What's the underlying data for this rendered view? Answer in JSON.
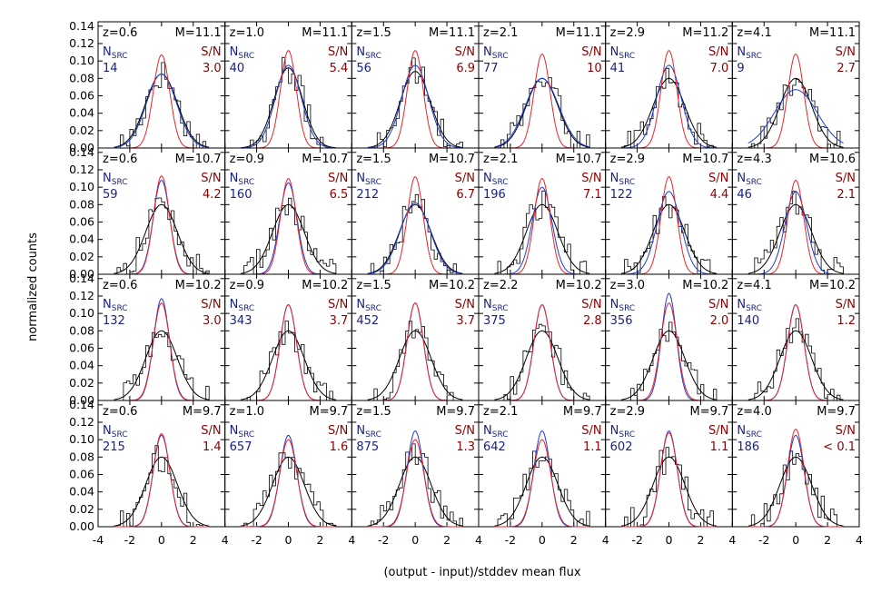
{
  "figure": {
    "xlabel": "(output - input)/stddev mean flux",
    "ylabel": "normalized counts"
  },
  "colors": {
    "histogram": "#000000",
    "fit_black": "#000000",
    "fit_blue": "#1f3bd6",
    "fit_red": "#e8232b",
    "nsrc_text": "#1a237e",
    "sn_text": "#8b0000",
    "label_text": "#000000"
  },
  "chart_data": {
    "type": "line",
    "layout": "4 rows x 6 columns panel grid, shared axes",
    "xlim": [
      -4,
      4
    ],
    "ylim": [
      0,
      0.145
    ],
    "x_ticks": [
      "-4",
      "-2",
      "0",
      "2",
      "4"
    ],
    "y_ticks": [
      "0.00",
      "0.02",
      "0.04",
      "0.06",
      "0.08",
      "0.10",
      "0.12",
      "0.14"
    ],
    "nsrc_label": "N",
    "nsrc_sub": "SRC",
    "sn_label": "S/N",
    "series_description": [
      "histogram (black step)",
      "Gaussian fit (black)",
      "Gaussian (blue)",
      "Gaussian (red)"
    ],
    "panels": [
      {
        "row": 0,
        "col": 0,
        "z": "z=0.6",
        "m": "M=11.1",
        "nsrc": "14",
        "sn": "3.0",
        "peak_black": 0.085,
        "sigma_black": 1.0,
        "peak_blue": 0.085,
        "sigma_blue": 0.95,
        "peak_red": 0.107,
        "sigma_red": 0.52
      },
      {
        "row": 0,
        "col": 1,
        "z": "z=1.0",
        "m": "M=11.1",
        "nsrc": "40",
        "sn": "5.4",
        "peak_black": 0.092,
        "sigma_black": 0.9,
        "peak_blue": 0.095,
        "sigma_blue": 0.82,
        "peak_red": 0.112,
        "sigma_red": 0.5
      },
      {
        "row": 0,
        "col": 2,
        "z": "z=1.5",
        "m": "M=11.1",
        "nsrc": "56",
        "sn": "6.9",
        "peak_black": 0.088,
        "sigma_black": 0.95,
        "peak_blue": 0.095,
        "sigma_blue": 0.85,
        "peak_red": 0.112,
        "sigma_red": 0.5
      },
      {
        "row": 0,
        "col": 3,
        "z": "z=2.1",
        "m": "M=11.1",
        "nsrc": "77",
        "sn": "10",
        "peak_black": 0.08,
        "sigma_black": 1.0,
        "peak_blue": 0.08,
        "sigma_blue": 1.05,
        "peak_red": 0.108,
        "sigma_red": 0.5
      },
      {
        "row": 0,
        "col": 4,
        "z": "z=2.9",
        "m": "M=11.2",
        "nsrc": "41",
        "sn": "7.0",
        "peak_black": 0.08,
        "sigma_black": 1.0,
        "peak_blue": 0.095,
        "sigma_blue": 0.78,
        "peak_red": 0.112,
        "sigma_red": 0.5
      },
      {
        "row": 0,
        "col": 5,
        "z": "z=4.1",
        "m": "M=11.1",
        "nsrc": "9",
        "sn": "2.7",
        "peak_black": 0.08,
        "sigma_black": 1.0,
        "peak_blue": 0.067,
        "sigma_blue": 1.35,
        "peak_red": 0.108,
        "sigma_red": 0.5
      },
      {
        "row": 1,
        "col": 0,
        "z": "z=0.6",
        "m": "M=10.7",
        "nsrc": "59",
        "sn": "4.2",
        "peak_black": 0.08,
        "sigma_black": 1.0,
        "peak_blue": 0.108,
        "sigma_blue": 0.52,
        "peak_red": 0.113,
        "sigma_red": 0.5
      },
      {
        "row": 1,
        "col": 1,
        "z": "z=0.9",
        "m": "M=10.7",
        "nsrc": "160",
        "sn": "6.5",
        "peak_black": 0.08,
        "sigma_black": 1.0,
        "peak_blue": 0.105,
        "sigma_blue": 0.55,
        "peak_red": 0.11,
        "sigma_red": 0.5
      },
      {
        "row": 1,
        "col": 2,
        "z": "z=1.5",
        "m": "M=10.7",
        "nsrc": "212",
        "sn": "6.7",
        "peak_black": 0.08,
        "sigma_black": 1.0,
        "peak_blue": 0.082,
        "sigma_blue": 0.95,
        "peak_red": 0.112,
        "sigma_red": 0.5
      },
      {
        "row": 1,
        "col": 3,
        "z": "z=2.1",
        "m": "M=10.7",
        "nsrc": "196",
        "sn": "7.1",
        "peak_black": 0.08,
        "sigma_black": 1.0,
        "peak_blue": 0.1,
        "sigma_blue": 0.62,
        "peak_red": 0.11,
        "sigma_red": 0.5
      },
      {
        "row": 1,
        "col": 4,
        "z": "z=2.9",
        "m": "M=10.7",
        "nsrc": "122",
        "sn": "4.4",
        "peak_black": 0.08,
        "sigma_black": 1.0,
        "peak_blue": 0.095,
        "sigma_blue": 0.75,
        "peak_red": 0.112,
        "sigma_red": 0.5
      },
      {
        "row": 1,
        "col": 5,
        "z": "z=4.3",
        "m": "M=10.6",
        "nsrc": "46",
        "sn": "2.1",
        "peak_black": 0.08,
        "sigma_black": 1.0,
        "peak_blue": 0.095,
        "sigma_blue": 0.68,
        "peak_red": 0.108,
        "sigma_red": 0.5
      },
      {
        "row": 2,
        "col": 0,
        "z": "z=0.6",
        "m": "M=10.2",
        "nsrc": "132",
        "sn": "3.0",
        "peak_black": 0.08,
        "sigma_black": 1.0,
        "peak_blue": 0.117,
        "sigma_blue": 0.5,
        "peak_red": 0.112,
        "sigma_red": 0.52
      },
      {
        "row": 2,
        "col": 1,
        "z": "z=0.9",
        "m": "M=10.2",
        "nsrc": "343",
        "sn": "3.7",
        "peak_black": 0.08,
        "sigma_black": 1.0,
        "peak_blue": 0.11,
        "sigma_blue": 0.52,
        "peak_red": 0.11,
        "sigma_red": 0.52
      },
      {
        "row": 2,
        "col": 2,
        "z": "z=1.5",
        "m": "M=10.2",
        "nsrc": "452",
        "sn": "3.7",
        "peak_black": 0.08,
        "sigma_black": 1.0,
        "peak_blue": 0.112,
        "sigma_blue": 0.52,
        "peak_red": 0.112,
        "sigma_red": 0.52
      },
      {
        "row": 2,
        "col": 3,
        "z": "z=2.2",
        "m": "M=10.2",
        "nsrc": "375",
        "sn": "2.8",
        "peak_black": 0.08,
        "sigma_black": 1.0,
        "peak_blue": 0.11,
        "sigma_blue": 0.52,
        "peak_red": 0.11,
        "sigma_red": 0.52
      },
      {
        "row": 2,
        "col": 4,
        "z": "z=3.0",
        "m": "M=10.2",
        "nsrc": "356",
        "sn": "2.0",
        "peak_black": 0.08,
        "sigma_black": 1.0,
        "peak_blue": 0.123,
        "sigma_blue": 0.47,
        "peak_red": 0.112,
        "sigma_red": 0.52
      },
      {
        "row": 2,
        "col": 5,
        "z": "z=4.1",
        "m": "M=10.2",
        "nsrc": "140",
        "sn": "1.2",
        "peak_black": 0.08,
        "sigma_black": 1.0,
        "peak_blue": 0.11,
        "sigma_blue": 0.52,
        "peak_red": 0.11,
        "sigma_red": 0.52
      },
      {
        "row": 3,
        "col": 0,
        "z": "z=0.6",
        "m": "M=9.7",
        "nsrc": "215",
        "sn": "1.4",
        "peak_black": 0.08,
        "sigma_black": 1.0,
        "peak_blue": 0.105,
        "sigma_blue": 0.53,
        "peak_red": 0.107,
        "sigma_red": 0.52
      },
      {
        "row": 3,
        "col": 1,
        "z": "z=1.0",
        "m": "M=9.7",
        "nsrc": "657",
        "sn": "1.6",
        "peak_black": 0.08,
        "sigma_black": 1.0,
        "peak_blue": 0.105,
        "sigma_blue": 0.53,
        "peak_red": 0.1,
        "sigma_red": 0.55
      },
      {
        "row": 3,
        "col": 2,
        "z": "z=1.5",
        "m": "M=9.7",
        "nsrc": "875",
        "sn": "1.3",
        "peak_black": 0.08,
        "sigma_black": 1.0,
        "peak_blue": 0.11,
        "sigma_blue": 0.52,
        "peak_red": 0.1,
        "sigma_red": 0.55
      },
      {
        "row": 3,
        "col": 3,
        "z": "z=2.1",
        "m": "M=9.7",
        "nsrc": "642",
        "sn": "1.1",
        "peak_black": 0.08,
        "sigma_black": 1.0,
        "peak_blue": 0.11,
        "sigma_blue": 0.52,
        "peak_red": 0.1,
        "sigma_red": 0.55
      },
      {
        "row": 3,
        "col": 4,
        "z": "z=2.9",
        "m": "M=9.7",
        "nsrc": "602",
        "sn": "1.1",
        "peak_black": 0.08,
        "sigma_black": 1.0,
        "peak_blue": 0.11,
        "sigma_blue": 0.52,
        "peak_red": 0.108,
        "sigma_red": 0.53
      },
      {
        "row": 3,
        "col": 5,
        "z": "z=4.0",
        "m": "M=9.7",
        "nsrc": "186",
        "sn": "< 0.1",
        "peak_black": 0.08,
        "sigma_black": 1.0,
        "peak_blue": 0.105,
        "sigma_blue": 0.53,
        "peak_red": 0.112,
        "sigma_red": 0.52
      }
    ]
  }
}
